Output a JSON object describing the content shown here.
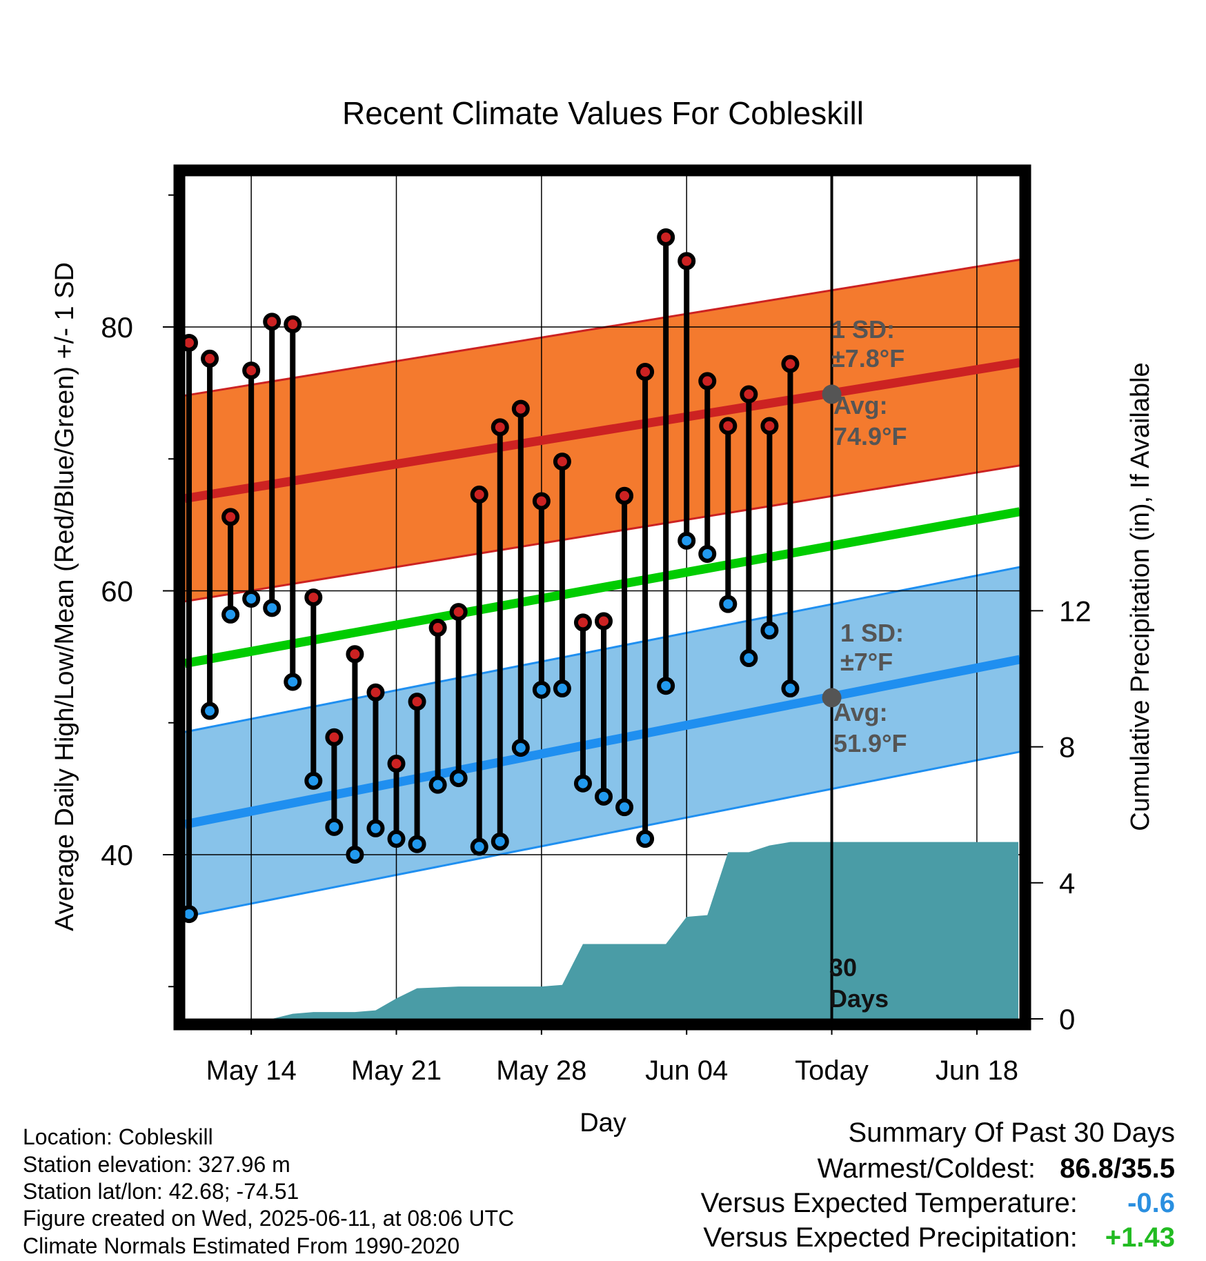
{
  "chart_data": {
    "type": "line",
    "title": "Recent Climate Values For Cobleskill",
    "xlabel": "Day",
    "ylabel_left": "Average Daily High/Low/Mean (Red/Blue/Green) +/- 1 SD",
    "ylabel_right": "Cumulative Precipitation (in), If Available",
    "x_tick_labels": [
      "May 14",
      "May 21",
      "May 28",
      "Jun 04",
      "Today",
      "Jun 18"
    ],
    "x_tick_days": [
      3,
      10,
      17,
      24,
      31,
      38
    ],
    "x_range_days": [
      -0.5,
      40
    ],
    "y_left_range": [
      30,
      91
    ],
    "y_left_ticks": [
      40,
      60,
      80
    ],
    "y_right_ticks": [
      "0",
      "4",
      "8",
      "12"
    ],
    "y_right_range": [
      0,
      24.5
    ],
    "grid": true,
    "series": [
      {
        "name": "High",
        "color": "#cc2222",
        "days": [
          0,
          1,
          2,
          3,
          4,
          5,
          6,
          7,
          8,
          9,
          10,
          11,
          12,
          13,
          14,
          15,
          16,
          17,
          18,
          19,
          20,
          21,
          22,
          23,
          24,
          25,
          26,
          27,
          28,
          29
        ],
        "values": [
          78.8,
          77.6,
          65.6,
          76.7,
          80.4,
          80.2,
          59.5,
          48.9,
          55.2,
          52.3,
          46.9,
          51.6,
          57.2,
          58.4,
          67.3,
          72.4,
          73.8,
          66.8,
          69.8,
          57.6,
          57.7,
          67.2,
          76.6,
          86.8,
          85.0,
          75.9,
          72.5,
          74.9,
          72.5,
          77.2
        ]
      },
      {
        "name": "Low",
        "color": "#2299ee",
        "days": [
          0,
          1,
          2,
          3,
          4,
          5,
          6,
          7,
          8,
          9,
          10,
          11,
          12,
          13,
          14,
          15,
          16,
          17,
          18,
          19,
          20,
          21,
          22,
          23,
          24,
          25,
          26,
          27,
          28,
          29
        ],
        "values": [
          35.5,
          50.9,
          58.2,
          59.4,
          58.7,
          53.1,
          45.6,
          42.1,
          40.0,
          42.0,
          41.2,
          40.8,
          45.3,
          45.8,
          40.6,
          41.0,
          48.1,
          52.5,
          52.6,
          45.4,
          44.4,
          43.6,
          41.2,
          52.8,
          63.8,
          62.8,
          59.0,
          54.9,
          57.0,
          52.6
        ]
      },
      {
        "name": "Mean",
        "color": "#00cc00",
        "start": 54.5,
        "end": 66.0
      }
    ],
    "normal_high": {
      "start": 67.0,
      "end": 77.3,
      "sd_band": 7.8
    },
    "normal_low": {
      "start": 42.3,
      "end": 54.8,
      "sd_band": 7.0
    },
    "today_day": 31,
    "today_avg_high": 74.9,
    "today_avg_low": 51.9,
    "precipitation": {
      "days": [
        -0.5,
        4,
        5,
        6,
        8,
        9,
        10,
        11,
        13,
        17,
        18,
        19,
        20,
        23,
        24,
        25,
        26,
        27,
        28,
        29,
        30,
        31,
        40
      ],
      "values": [
        0,
        0,
        0.15,
        0.2,
        0.2,
        0.25,
        0.6,
        0.9,
        0.95,
        0.95,
        1.0,
        2.2,
        2.2,
        2.2,
        3.0,
        3.05,
        4.9,
        4.9,
        5.1,
        5.2,
        5.2,
        5.2,
        5.2
      ]
    },
    "annotations": {
      "high_sd_label": "1 SD:",
      "high_sd_value": "±7.8°F",
      "high_avg_label": "Avg:",
      "high_avg_value": "74.9°F",
      "low_sd_label": "1 SD:",
      "low_sd_value": "±7°F",
      "low_avg_label": "Avg:",
      "low_avg_value": "51.9°F",
      "days_number": "30",
      "days_word": "Days"
    }
  },
  "location_info": [
    "Location: Cobleskill",
    "Station elevation: 327.96 m",
    "Station lat/lon: 42.68; -74.51",
    "Figure created on Wed, 2025-06-11, at 08:06 UTC",
    "Climate Normals Estimated From 1990-2020"
  ],
  "summary": {
    "heading": "Summary Of Past 30 Days",
    "warm_cold_label": "Warmest/Coldest:",
    "warm_cold_value": "86.8/35.5",
    "temp_label": "Versus Expected Temperature:",
    "temp_value": "-0.6",
    "temp_color": "#2a8fe0",
    "precip_label": "Versus Expected Precipitation:",
    "precip_value": "+1.43",
    "precip_color": "#22bb22"
  },
  "colors": {
    "high_band": "#f47a2e",
    "high_line": "#cc2222",
    "low_band": "#88c3ea",
    "low_line": "#1f8ff0",
    "mean_line": "#00cc00",
    "precip_fill": "#4a9ca6"
  }
}
